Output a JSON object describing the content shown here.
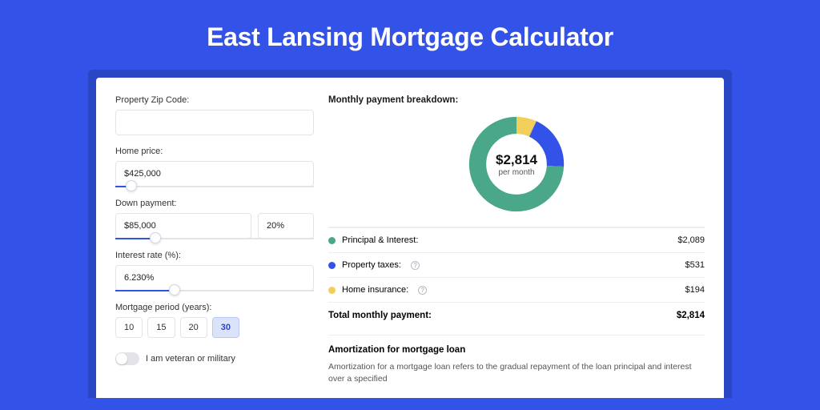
{
  "page": {
    "title": "East Lansing Mortgage Calculator",
    "bg_color": "#3353e8",
    "card_shadow_color": "#2a46c4"
  },
  "form": {
    "zip": {
      "label": "Property Zip Code:",
      "value": ""
    },
    "price": {
      "label": "Home price:",
      "value": "$425,000",
      "slider_pct": 8
    },
    "down": {
      "label": "Down payment:",
      "value": "$85,000",
      "pct_value": "20%",
      "slider_pct": 20
    },
    "rate": {
      "label": "Interest rate (%):",
      "value": "6.230%",
      "slider_pct": 30
    },
    "period": {
      "label": "Mortgage period (years):",
      "options": [
        "10",
        "15",
        "20",
        "30"
      ],
      "selected_index": 3
    },
    "veteran": {
      "label": "I am veteran or military",
      "on": false
    }
  },
  "breakdown": {
    "title": "Monthly payment breakdown:",
    "donut": {
      "center_value": "$2,814",
      "center_sub": "per month",
      "segments": [
        {
          "label": "Principal & Interest:",
          "value": "$2,089",
          "color": "#4aa789",
          "pct": 74.2,
          "help": false
        },
        {
          "label": "Property taxes:",
          "value": "$531",
          "color": "#3353e8",
          "pct": 18.9,
          "help": true
        },
        {
          "label": "Home insurance:",
          "value": "$194",
          "color": "#f2cf5b",
          "pct": 6.9,
          "help": true
        }
      ]
    },
    "total": {
      "label": "Total monthly payment:",
      "value": "$2,814"
    }
  },
  "amortization": {
    "title": "Amortization for mortgage loan",
    "text": "Amortization for a mortgage loan refers to the gradual repayment of the loan principal and interest over a specified"
  },
  "styling": {
    "input_border": "#e2e4ea",
    "divider": "#eceef3",
    "text_primary": "#1a1a1a",
    "text_secondary": "#555555"
  }
}
